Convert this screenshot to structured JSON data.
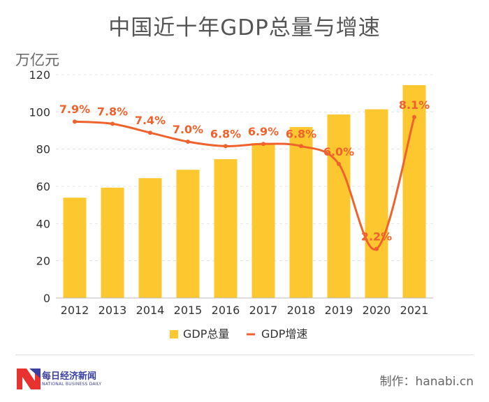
{
  "header": {
    "title": "中国近十年GDP总量与增速",
    "unit": "万亿元"
  },
  "chart_data": {
    "type": "bar",
    "title": "中国近十年GDP总量与增速",
    "ylabel": "万亿元",
    "xlabel": "",
    "ylim": [
      0,
      120
    ],
    "yticks": [
      0,
      20,
      40,
      60,
      80,
      100,
      120
    ],
    "grid": true,
    "categories": [
      "2012",
      "2013",
      "2014",
      "2015",
      "2016",
      "2017",
      "2018",
      "2019",
      "2020",
      "2021"
    ],
    "series": [
      {
        "name": "GDP总量",
        "type": "bar",
        "color": "#fdc82f",
        "values": [
          53.9,
          59.3,
          64.4,
          68.9,
          74.6,
          83.2,
          91.9,
          98.6,
          101.4,
          114.4
        ]
      },
      {
        "name": "GDP增速",
        "type": "line",
        "color": "#f0622d",
        "values": [
          7.9,
          7.8,
          7.4,
          7.0,
          6.8,
          6.9,
          6.8,
          6.0,
          2.2,
          8.1
        ],
        "labels": [
          "7.9%",
          "7.8%",
          "7.4%",
          "7.0%",
          "6.8%",
          "6.9%",
          "6.8%",
          "6.0%",
          "2.2%",
          "8.1%"
        ]
      }
    ],
    "legend_position": "bottom"
  },
  "legend": {
    "bar_label": "GDP总量",
    "line_label": "GDP增速"
  },
  "footer": {
    "logo_name": "每日经济新闻",
    "logo_sub": "NATIONAL BUSINESS DAILY",
    "credit": "制作：hanabi.cn"
  }
}
